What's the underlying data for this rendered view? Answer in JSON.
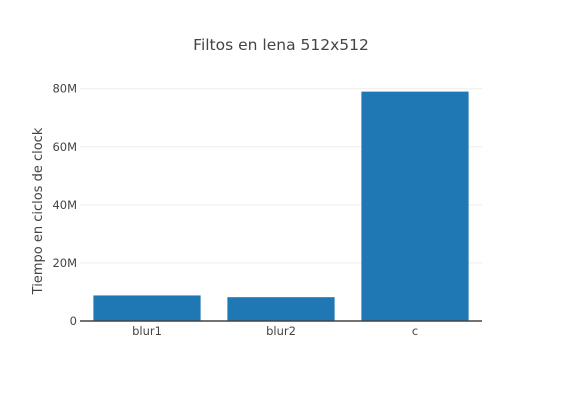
{
  "chart_data": {
    "type": "bar",
    "title": "Filtos en lena 512x512",
    "xlabel": "",
    "ylabel": "Tiempo en ciclos de clock",
    "categories": [
      "blur1",
      "blur2",
      "c"
    ],
    "values": [
      8800000,
      8200000,
      79000000
    ],
    "ylim": [
      0,
      83000000
    ],
    "yticks": [
      0,
      20000000,
      40000000,
      60000000,
      80000000
    ],
    "ytick_labels": [
      "0",
      "20M",
      "40M",
      "60M",
      "80M"
    ],
    "grid": true,
    "legend": "none",
    "colors": {
      "bar": "#1f77b4",
      "grid": "#eeeeee",
      "axis": "#444444",
      "text": "#444444"
    }
  }
}
